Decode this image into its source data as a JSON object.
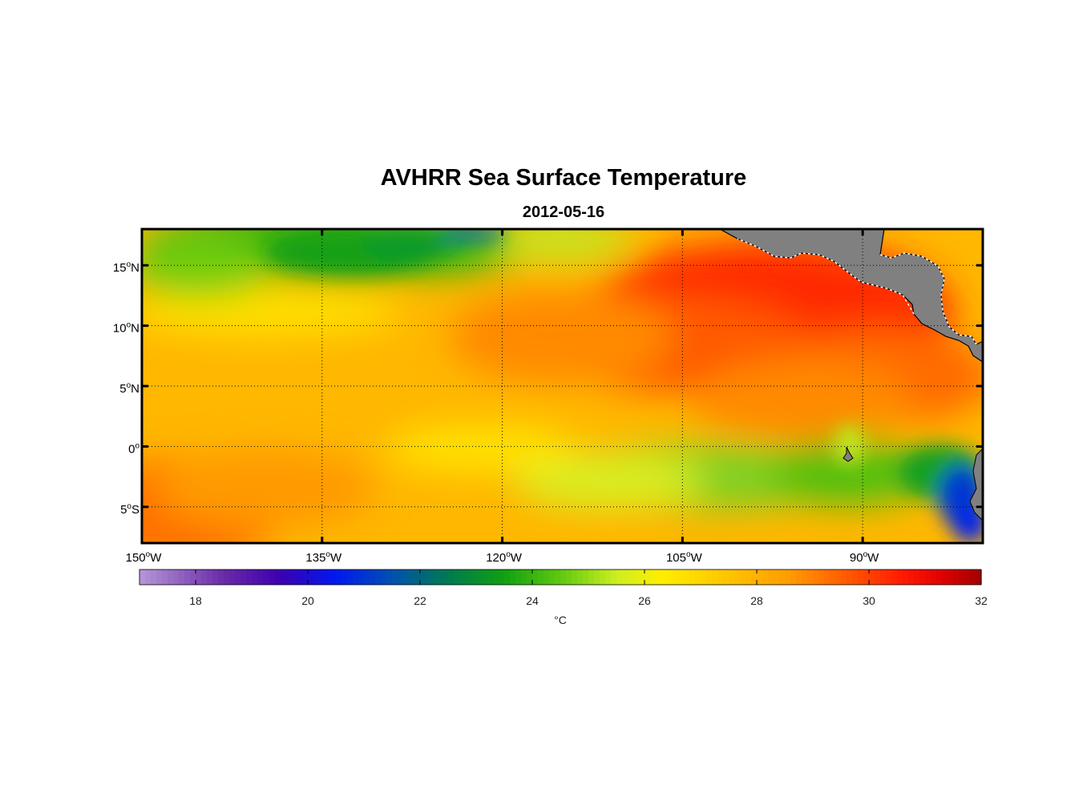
{
  "title": "AVHRR Sea Surface Temperature",
  "date": "2012-05-16",
  "map": {
    "lon_range": [
      -150,
      -80
    ],
    "lat_range": [
      -8,
      18
    ],
    "lat_labels": [
      {
        "lat": 15,
        "num": "15",
        "hem": "N"
      },
      {
        "lat": 10,
        "num": "10",
        "hem": "N"
      },
      {
        "lat": 5,
        "num": "5",
        "hem": "N"
      },
      {
        "lat": 0,
        "num": "0",
        "hem": ""
      },
      {
        "lat": -5,
        "num": "5",
        "hem": "S"
      }
    ],
    "lon_labels": [
      {
        "lon": -150,
        "num": "150",
        "hem": "W"
      },
      {
        "lon": -135,
        "num": "135",
        "hem": "W"
      },
      {
        "lon": -120,
        "num": "120",
        "hem": "W"
      },
      {
        "lon": -105,
        "num": "105",
        "hem": "W"
      },
      {
        "lon": -90,
        "num": "90",
        "hem": "W"
      }
    ],
    "land_color": "#808080"
  },
  "colorbar": {
    "min": 17,
    "max": 32,
    "ticks": [
      "18",
      "20",
      "22",
      "24",
      "26",
      "28",
      "30",
      "32"
    ],
    "unit": "°C",
    "stops": [
      {
        "v": 17,
        "c": "#b597d6"
      },
      {
        "v": 18.5,
        "c": "#6a2aa8"
      },
      {
        "v": 19.5,
        "c": "#3c00b0"
      },
      {
        "v": 20.5,
        "c": "#0018f0"
      },
      {
        "v": 21.5,
        "c": "#0050b0"
      },
      {
        "v": 22.5,
        "c": "#007a50"
      },
      {
        "v": 23.5,
        "c": "#10a010"
      },
      {
        "v": 24.5,
        "c": "#60c810"
      },
      {
        "v": 25.5,
        "c": "#ccee20"
      },
      {
        "v": 26.3,
        "c": "#ffee00"
      },
      {
        "v": 27.5,
        "c": "#ffc400"
      },
      {
        "v": 28.6,
        "c": "#ff9a00"
      },
      {
        "v": 29.6,
        "c": "#ff5a00"
      },
      {
        "v": 30.6,
        "c": "#ff1a00"
      },
      {
        "v": 31.3,
        "c": "#e00000"
      },
      {
        "v": 32,
        "c": "#a00000"
      }
    ]
  }
}
